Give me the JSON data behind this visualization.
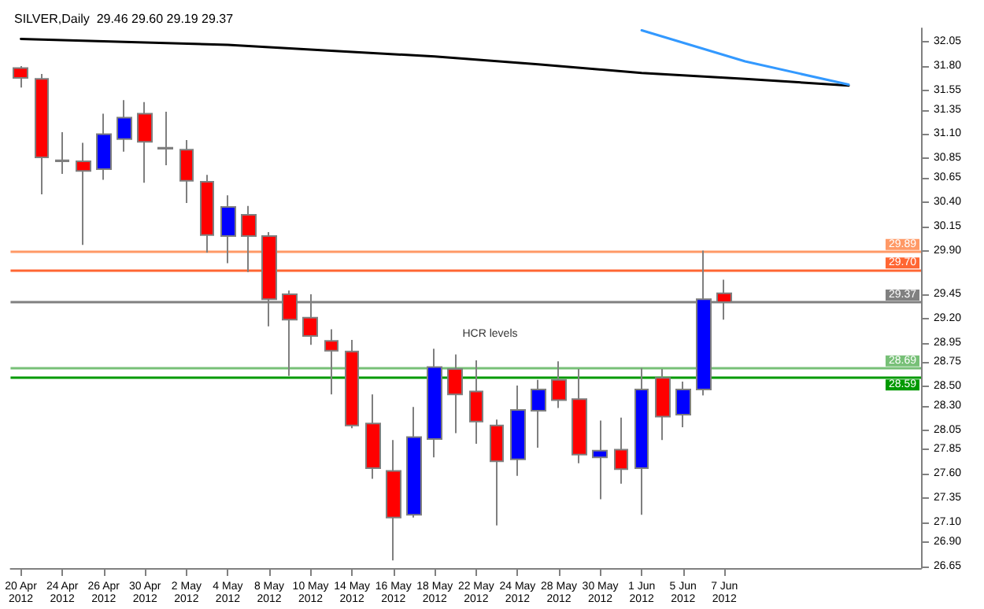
{
  "chart_data": {
    "type": "candlestick",
    "title": "SILVER,Daily  29.46 29.60 29.19 29.37",
    "categories": [
      "20 Apr 2012",
      null,
      "24 Apr 2012",
      null,
      "26 Apr 2012",
      null,
      "30 Apr 2012",
      null,
      "2 May 2012",
      null,
      "4 May 2012",
      null,
      "8 May 2012",
      null,
      "10 May 2012",
      null,
      "14 May 2012",
      null,
      "16 May 2012",
      null,
      "18 May 2012",
      null,
      "22 May 2012",
      null,
      "24 May 2012",
      null,
      "28 May 2012",
      null,
      "30 May 2012",
      null,
      "1 Jun 2012",
      null,
      "5 Jun 2012",
      null,
      "7 Jun 2012",
      null,
      null,
      null,
      null,
      null,
      null,
      null,
      null,
      null
    ],
    "ohlc": [
      [
        31.78,
        31.8,
        31.58,
        31.68
      ],
      [
        31.67,
        31.72,
        30.48,
        30.86
      ],
      [
        30.83,
        31.12,
        30.69,
        30.82
      ],
      [
        30.82,
        31.01,
        29.96,
        30.72
      ],
      [
        30.74,
        31.31,
        30.63,
        31.1
      ],
      [
        31.05,
        31.45,
        30.92,
        31.27
      ],
      [
        31.31,
        31.43,
        30.6,
        31.02
      ],
      [
        30.96,
        31.33,
        30.78,
        30.95
      ],
      [
        30.94,
        31.04,
        30.39,
        30.62
      ],
      [
        30.61,
        30.68,
        29.88,
        30.06
      ],
      [
        30.05,
        30.47,
        29.77,
        30.35
      ],
      [
        30.27,
        30.36,
        29.68,
        30.05
      ],
      [
        30.05,
        30.09,
        29.12,
        29.4
      ],
      [
        29.45,
        29.49,
        28.61,
        29.19
      ],
      [
        29.21,
        29.45,
        28.93,
        29.02
      ],
      [
        28.97,
        29.09,
        28.42,
        28.87
      ],
      [
        28.86,
        28.98,
        28.07,
        28.1
      ],
      [
        28.12,
        28.42,
        27.55,
        27.66
      ],
      [
        27.63,
        27.95,
        26.71,
        27.15
      ],
      [
        27.18,
        28.29,
        27.15,
        27.98
      ],
      [
        27.96,
        28.89,
        27.77,
        28.7
      ],
      [
        28.68,
        28.83,
        28.02,
        28.42
      ],
      [
        28.45,
        28.77,
        27.91,
        28.14
      ],
      [
        28.1,
        28.16,
        27.07,
        27.73
      ],
      [
        27.75,
        28.51,
        27.58,
        28.26
      ],
      [
        28.25,
        28.57,
        27.87,
        28.47
      ],
      [
        28.57,
        28.76,
        28.28,
        28.36
      ],
      [
        28.37,
        28.68,
        27.71,
        27.8
      ],
      [
        27.77,
        28.15,
        27.34,
        27.84
      ],
      [
        27.85,
        28.18,
        27.5,
        27.65
      ],
      [
        27.66,
        28.69,
        27.18,
        28.47
      ],
      [
        28.59,
        28.68,
        27.95,
        28.19
      ],
      [
        28.21,
        28.55,
        28.08,
        28.47
      ],
      [
        28.47,
        29.9,
        28.41,
        29.4
      ],
      [
        29.46,
        29.6,
        29.19,
        29.37
      ],
      null,
      null,
      null,
      null,
      null,
      null,
      null,
      null,
      null
    ],
    "colors": [
      "#ff0000",
      "#ff0000",
      "#ff0000",
      "#ff0000",
      "#0000ff",
      "#0000ff",
      "#ff0000",
      "#ff0000",
      "#ff0000",
      "#ff0000",
      "#0000ff",
      "#ff0000",
      "#ff0000",
      "#ff0000",
      "#ff0000",
      "#ff0000",
      "#ff0000",
      "#ff0000",
      "#ff0000",
      "#0000ff",
      "#0000ff",
      "#ff0000",
      "#ff0000",
      "#ff0000",
      "#0000ff",
      "#0000ff",
      "#ff0000",
      "#ff0000",
      "#0000ff",
      "#ff0000",
      "#0000ff",
      "#ff0000",
      "#0000ff",
      "#0000ff",
      "#ff0000",
      null,
      null,
      null,
      null,
      null,
      null,
      null,
      null,
      null
    ],
    "series": [
      {
        "type": "line",
        "color": "#000000",
        "values": [
          32.08,
          null,
          null,
          null,
          null,
          32.05,
          null,
          null,
          null,
          null,
          32.02,
          null,
          null,
          null,
          null,
          31.96,
          null,
          null,
          null,
          null,
          31.9,
          null,
          null,
          null,
          null,
          31.82,
          null,
          null,
          null,
          null,
          31.73,
          null,
          null,
          null,
          null,
          31.67,
          null,
          null,
          null,
          null,
          31.6,
          null,
          null,
          null
        ]
      },
      {
        "type": "line",
        "color": "#3399ff",
        "values": [
          null,
          null,
          null,
          null,
          null,
          null,
          null,
          null,
          null,
          null,
          null,
          null,
          null,
          null,
          null,
          null,
          null,
          null,
          null,
          null,
          null,
          null,
          null,
          null,
          null,
          null,
          null,
          null,
          null,
          null,
          32.17,
          null,
          null,
          null,
          null,
          31.85,
          null,
          null,
          null,
          null,
          31.61,
          null,
          null,
          null
        ]
      }
    ],
    "ylim": [
      26.63,
      32.19
    ],
    "yticks": [
      32.05,
      {
        "value": 31.8,
        "label": "31.80"
      },
      31.55,
      31.35,
      {
        "value": 31.1,
        "label": "31.10"
      },
      30.85,
      30.65,
      {
        "value": 30.4,
        "label": "30.40"
      },
      30.15,
      {
        "value": 29.9,
        "label": "29.90"
      },
      29.45,
      {
        "value": 29.2,
        "label": "29.20"
      },
      28.95,
      28.75,
      {
        "value": 28.5,
        "label": "28.50"
      },
      {
        "value": 28.3,
        "label": "28.30"
      },
      28.05,
      27.85,
      {
        "value": 27.6,
        "label": "27.60"
      },
      27.35,
      {
        "value": 27.1,
        "label": "27.10"
      },
      {
        "value": 26.9,
        "label": "26.90"
      },
      26.65
    ],
    "ref_lines": [
      {
        "axis": "y",
        "value": 29.89,
        "label": "29.89",
        "color": "#ff9966"
      },
      {
        "axis": "y",
        "value": 29.7,
        "label": "29.70",
        "color": "#ff6633"
      },
      {
        "axis": "y",
        "value": 29.37,
        "label": "29.37",
        "color": "#808080"
      },
      {
        "axis": "y",
        "value": 28.69,
        "label": "28.69",
        "color": "#77c077"
      },
      {
        "axis": "y",
        "value": 28.59,
        "label": "28.59",
        "color": "#009900"
      }
    ],
    "annotations": [
      "HCR levels"
    ],
    "grid": false
  }
}
